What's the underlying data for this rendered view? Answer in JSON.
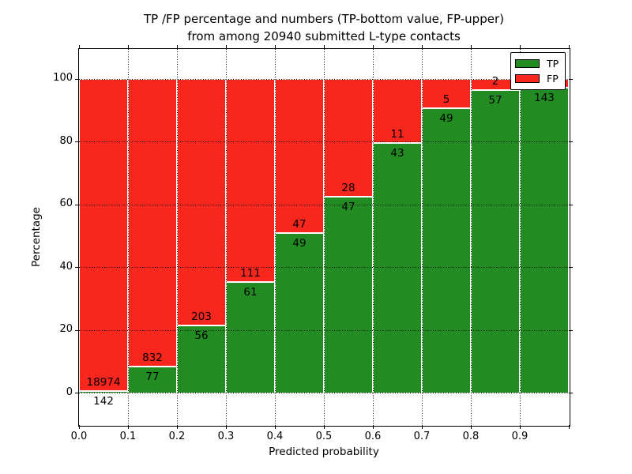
{
  "title": {
    "line1": "TP /FP percentage and numbers (TP-bottom value, FP-upper)",
    "line2": "from among 20940 submitted L-type contacts"
  },
  "axes": {
    "xlabel": "Predicted probability",
    "ylabel": "Percentage"
  },
  "legend": {
    "items": [
      {
        "label": "TP",
        "color": "#228b22"
      },
      {
        "label": "FP",
        "color": "#f8271d"
      }
    ]
  },
  "chart_data": {
    "type": "bar",
    "stacked": true,
    "orientation": "vertical",
    "title": "TP /FP percentage and numbers (TP-bottom value, FP-upper)\nfrom among 20940 submitted L-type contacts",
    "xlabel": "Predicted probability",
    "ylabel": "Percentage",
    "total_submitted": 20940,
    "contact_type": "L-type",
    "x_bin_width": 0.1,
    "x_bin_starts": [
      0.0,
      0.1,
      0.2,
      0.3,
      0.4,
      0.5,
      0.6,
      0.7,
      0.8,
      0.9
    ],
    "xlim": [
      0.0,
      1.0
    ],
    "ylim": [
      -10.1,
      109.6
    ],
    "xticks": [
      "0.0",
      "0.1",
      "0.2",
      "0.3",
      "0.4",
      "0.5",
      "0.6",
      "0.7",
      "0.8",
      "0.9"
    ],
    "yticks": [
      0,
      20,
      40,
      60,
      80,
      100
    ],
    "ytick_labels": [
      "0",
      "20",
      "40",
      "60",
      "80",
      "100"
    ],
    "grid": "dotted, both axes",
    "legend_position": "upper right",
    "bar_edge_color": "#ffffff",
    "series": [
      {
        "name": "TP",
        "color": "#228b22",
        "counts": [
          142,
          77,
          56,
          61,
          49,
          47,
          43,
          49,
          57,
          143
        ],
        "labels": [
          "142",
          "77",
          "56",
          "61",
          "49",
          "47",
          "43",
          "49",
          "57",
          "143"
        ],
        "pct": [
          0.74,
          8.47,
          21.62,
          35.47,
          51.04,
          62.67,
          79.63,
          90.74,
          96.61,
          97.3
        ]
      },
      {
        "name": "FP",
        "color": "#f8271d",
        "counts": [
          18974,
          832,
          203,
          111,
          47,
          28,
          11,
          5,
          2,
          null
        ],
        "labels": [
          "18974",
          "832",
          "203",
          "111",
          "47",
          "28",
          "11",
          "5",
          "2",
          ""
        ],
        "pct": [
          99.26,
          91.53,
          78.38,
          64.53,
          48.96,
          37.33,
          20.37,
          9.26,
          3.39,
          2.7
        ]
      }
    ]
  }
}
